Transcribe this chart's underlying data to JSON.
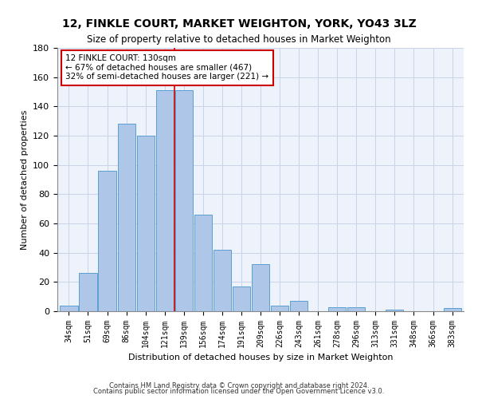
{
  "title": "12, FINKLE COURT, MARKET WEIGHTON, YORK, YO43 3LZ",
  "subtitle": "Size of property relative to detached houses in Market Weighton",
  "xlabel": "Distribution of detached houses by size in Market Weighton",
  "ylabel": "Number of detached properties",
  "categories": [
    "34sqm",
    "51sqm",
    "69sqm",
    "86sqm",
    "104sqm",
    "121sqm",
    "139sqm",
    "156sqm",
    "174sqm",
    "191sqm",
    "209sqm",
    "226sqm",
    "243sqm",
    "261sqm",
    "278sqm",
    "296sqm",
    "313sqm",
    "331sqm",
    "348sqm",
    "366sqm",
    "383sqm"
  ],
  "values": [
    4,
    26,
    96,
    128,
    120,
    151,
    151,
    66,
    42,
    17,
    32,
    4,
    7,
    0,
    3,
    3,
    0,
    1,
    0,
    0,
    2
  ],
  "bar_color": "#aec6e8",
  "bar_edge_color": "#5a9fd4",
  "annotation_line0": "12 FINKLE COURT: 130sqm",
  "annotation_line1": "← 67% of detached houses are smaller (467)",
  "annotation_line2": "32% of semi-detached houses are larger (221) →",
  "vline_color": "#cc0000",
  "vline_position": 5.5,
  "ylim": [
    0,
    180
  ],
  "yticks": [
    0,
    20,
    40,
    60,
    80,
    100,
    120,
    140,
    160,
    180
  ],
  "grid_color": "#c8d4e8",
  "background_color": "#eef2fa",
  "footer1": "Contains HM Land Registry data © Crown copyright and database right 2024.",
  "footer2": "Contains public sector information licensed under the Open Government Licence v3.0."
}
